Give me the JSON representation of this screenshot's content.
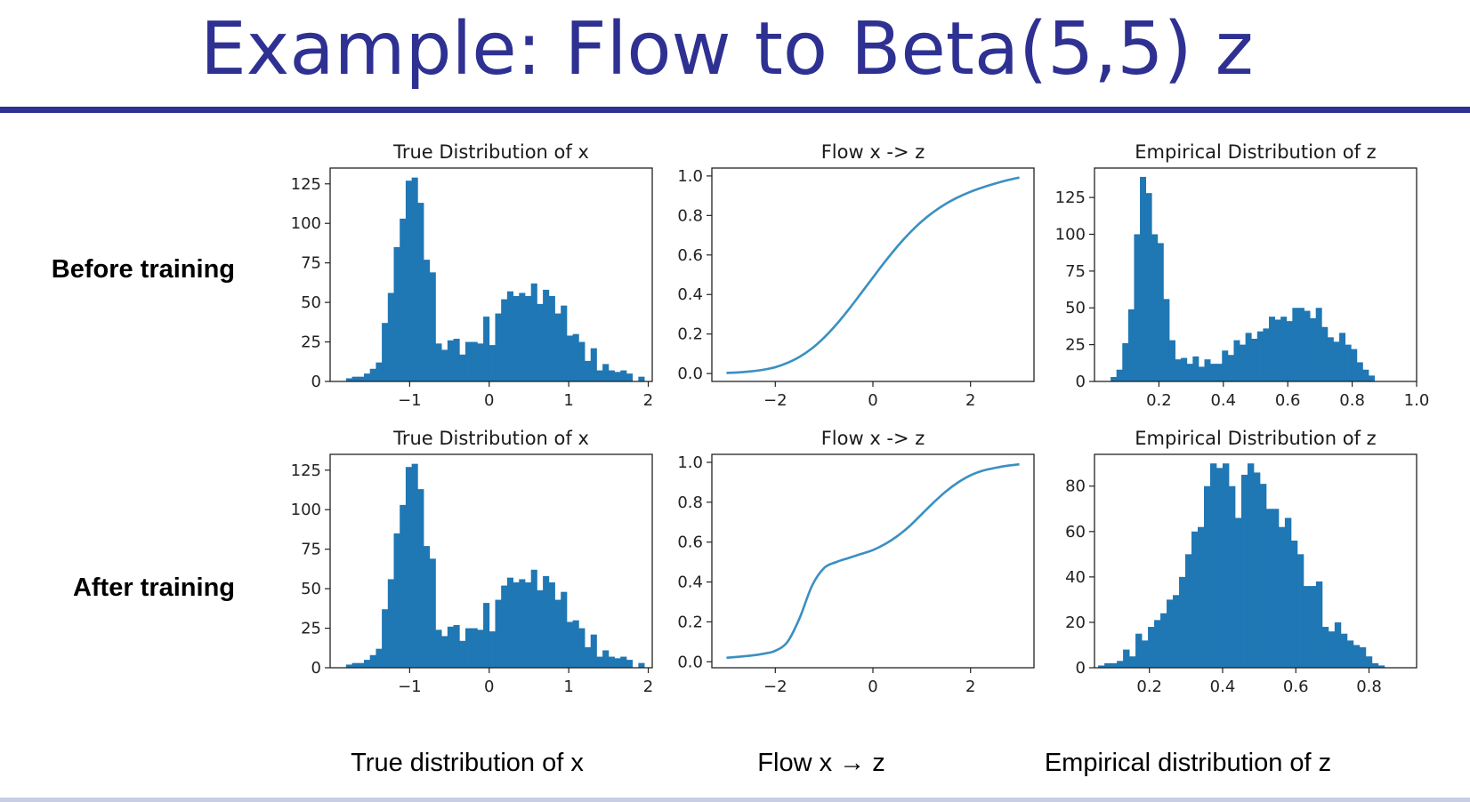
{
  "slide": {
    "title": "Example: Flow to Beta(5,5) z",
    "row_labels": [
      "Before training",
      "After training"
    ],
    "captions": [
      "True distribution of x",
      "Flow x → z",
      "Empirical distribution of z"
    ],
    "bar_color": "#1f77b4",
    "line_color": "#3b8fc2",
    "title_color": "#2e3192"
  },
  "chart_data": [
    {
      "type": "bar",
      "title": "True Distribution of x",
      "panel": "before-x",
      "bin_start": -1.8,
      "bin_width": 0.075,
      "values": [
        2,
        3,
        3,
        5,
        8,
        12,
        37,
        56,
        85,
        103,
        127,
        129,
        113,
        77,
        69,
        24,
        20,
        26,
        27,
        17,
        25,
        25,
        24,
        41,
        23,
        43,
        52,
        57,
        54,
        56,
        54,
        62,
        49,
        58,
        54,
        43,
        48,
        29,
        30,
        25,
        13,
        21,
        7,
        11,
        7,
        6,
        7,
        5,
        0,
        3
      ],
      "xlim": [
        -2.0,
        2.05
      ],
      "ylim": [
        0,
        135
      ],
      "xticks": [
        -1,
        0,
        1,
        2
      ],
      "xtick_labels": [
        "−1",
        "0",
        "1",
        "2"
      ],
      "yticks": [
        0,
        25,
        50,
        75,
        100,
        125
      ],
      "ytick_labels": [
        "0",
        "25",
        "50",
        "75",
        "100",
        "125"
      ]
    },
    {
      "type": "line",
      "title": "Flow x -> z",
      "panel": "before-flow",
      "curve": "sigmoid",
      "x": [
        -3.0,
        -2.75,
        -2.5,
        -2.25,
        -2.0,
        -1.75,
        -1.5,
        -1.25,
        -1.0,
        -0.75,
        -0.5,
        -0.25,
        0.0,
        0.25,
        0.5,
        0.75,
        1.0,
        1.25,
        1.5,
        1.75,
        2.0,
        2.25,
        2.5,
        2.75,
        3.0
      ],
      "y": [
        0.003,
        0.006,
        0.011,
        0.019,
        0.032,
        0.054,
        0.085,
        0.127,
        0.182,
        0.248,
        0.323,
        0.404,
        0.486,
        0.567,
        0.643,
        0.711,
        0.77,
        0.819,
        0.86,
        0.893,
        0.92,
        0.942,
        0.961,
        0.978,
        0.992
      ],
      "xlim": [
        -3.3,
        3.3
      ],
      "ylim": [
        -0.04,
        1.04
      ],
      "xticks": [
        -2,
        0,
        2
      ],
      "xtick_labels": [
        "−2",
        "0",
        "2"
      ],
      "yticks": [
        0.0,
        0.2,
        0.4,
        0.6,
        0.8,
        1.0
      ],
      "ytick_labels": [
        "0.0",
        "0.2",
        "0.4",
        "0.6",
        "0.8",
        "1.0"
      ]
    },
    {
      "type": "bar",
      "title": "Empirical Distribution of z",
      "panel": "before-z",
      "bin_start": 0.05,
      "bin_width": 0.0182,
      "values": [
        3,
        8,
        26,
        49,
        100,
        139,
        128,
        100,
        94,
        56,
        28,
        15,
        16,
        12,
        17,
        10,
        15,
        12,
        12,
        21,
        18,
        28,
        25,
        33,
        29,
        34,
        36,
        44,
        42,
        44,
        41,
        50,
        50,
        48,
        43,
        50,
        37,
        30,
        27,
        33,
        25,
        22,
        13,
        8,
        4
      ],
      "xlim": [
        0.0,
        1.0
      ],
      "ylim": [
        0,
        145
      ],
      "xticks": [
        0.2,
        0.4,
        0.6,
        0.8,
        1.0
      ],
      "xtick_labels": [
        "0.2",
        "0.4",
        "0.6",
        "0.8",
        "1.0"
      ],
      "yticks": [
        0,
        25,
        50,
        75,
        100,
        125
      ],
      "ytick_labels": [
        "0",
        "25",
        "50",
        "75",
        "100",
        "125"
      ]
    },
    {
      "type": "bar",
      "title": "True Distribution of x",
      "panel": "after-x",
      "bin_start": -1.8,
      "bin_width": 0.075,
      "values": [
        2,
        3,
        3,
        5,
        8,
        12,
        37,
        56,
        85,
        103,
        127,
        129,
        113,
        77,
        69,
        24,
        20,
        26,
        27,
        17,
        25,
        25,
        24,
        41,
        23,
        43,
        52,
        57,
        54,
        56,
        54,
        62,
        49,
        58,
        54,
        43,
        48,
        29,
        30,
        25,
        13,
        21,
        7,
        11,
        7,
        6,
        7,
        5,
        0,
        3
      ],
      "xlim": [
        -2.0,
        2.05
      ],
      "ylim": [
        0,
        135
      ],
      "xticks": [
        -1,
        0,
        1,
        2
      ],
      "xtick_labels": [
        "−1",
        "0",
        "1",
        "2"
      ],
      "yticks": [
        0,
        25,
        50,
        75,
        100,
        125
      ],
      "ytick_labels": [
        "0",
        "25",
        "50",
        "75",
        "100",
        "125"
      ]
    },
    {
      "type": "line",
      "title": "Flow x -> z",
      "panel": "after-flow",
      "curve": "two-step",
      "x": [
        -3.0,
        -2.75,
        -2.5,
        -2.25,
        -2.0,
        -1.75,
        -1.5,
        -1.25,
        -1.0,
        -0.75,
        -0.5,
        -0.25,
        0.0,
        0.25,
        0.5,
        0.75,
        1.0,
        1.25,
        1.5,
        1.75,
        2.0,
        2.25,
        2.5,
        2.75,
        3.0
      ],
      "y": [
        0.02,
        0.025,
        0.031,
        0.04,
        0.055,
        0.1,
        0.22,
        0.38,
        0.47,
        0.5,
        0.52,
        0.54,
        0.56,
        0.59,
        0.63,
        0.68,
        0.74,
        0.8,
        0.855,
        0.9,
        0.935,
        0.958,
        0.972,
        0.983,
        0.99
      ],
      "xlim": [
        -3.3,
        3.3
      ],
      "ylim": [
        -0.03,
        1.04
      ],
      "xticks": [
        -2,
        0,
        2
      ],
      "xtick_labels": [
        "−2",
        "0",
        "2"
      ],
      "yticks": [
        0.0,
        0.2,
        0.4,
        0.6,
        0.8,
        1.0
      ],
      "ytick_labels": [
        "0.0",
        "0.2",
        "0.4",
        "0.6",
        "0.8",
        "1.0"
      ]
    },
    {
      "type": "bar",
      "title": "Empirical Distribution of z",
      "panel": "after-z",
      "bin_start": 0.06,
      "bin_width": 0.017,
      "values": [
        1,
        2,
        2,
        3,
        8,
        5,
        15,
        12,
        18,
        21,
        24,
        30,
        32,
        40,
        50,
        60,
        62,
        80,
        90,
        88,
        90,
        80,
        66,
        85,
        90,
        86,
        81,
        70,
        70,
        62,
        66,
        56,
        50,
        36,
        36,
        38,
        18,
        16,
        20,
        15,
        12,
        10,
        9,
        5,
        2,
        1
      ],
      "xlim": [
        0.05,
        0.93
      ],
      "ylim": [
        0,
        94
      ],
      "xticks": [
        0.2,
        0.4,
        0.6,
        0.8
      ],
      "xtick_labels": [
        "0.2",
        "0.4",
        "0.6",
        "0.8"
      ],
      "yticks": [
        0,
        20,
        40,
        60,
        80
      ],
      "ytick_labels": [
        "0",
        "20",
        "40",
        "60",
        "80"
      ]
    }
  ]
}
